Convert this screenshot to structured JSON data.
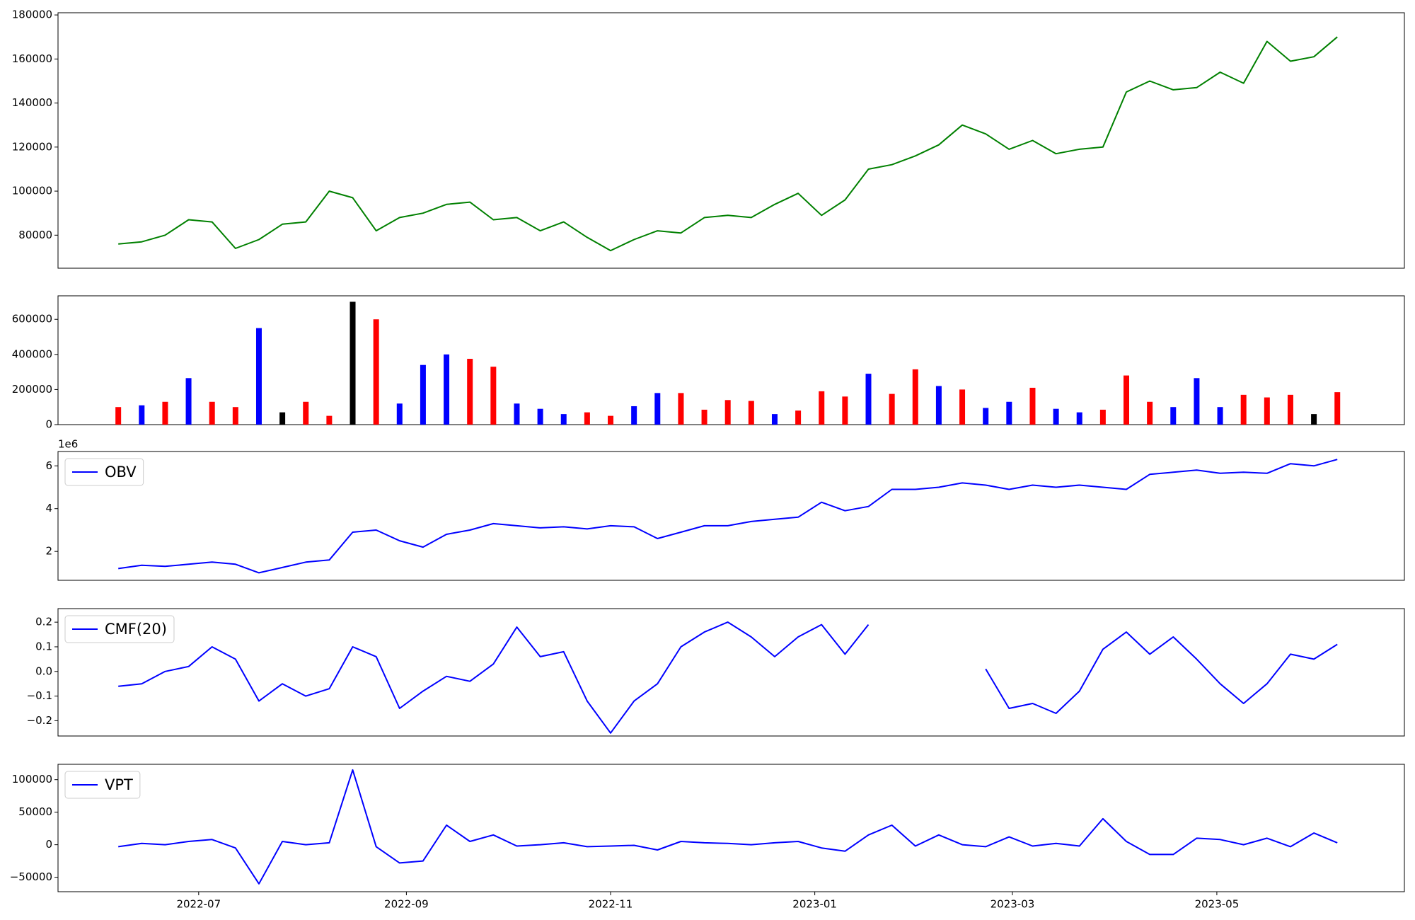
{
  "chart_data": [
    {
      "type": "line",
      "categories": [
        null,
        null,
        null,
        null,
        null,
        null,
        null,
        null,
        null,
        null,
        null,
        null,
        null,
        null,
        null,
        null,
        null,
        null,
        null,
        null,
        null,
        null,
        null,
        null,
        null,
        null,
        null,
        null,
        null,
        null,
        null,
        null,
        null,
        null,
        null,
        null,
        null,
        null,
        null,
        null,
        null,
        null,
        null,
        null,
        null,
        null,
        null,
        null,
        null,
        null,
        null,
        null,
        null
      ],
      "series": [
        {
          "color": "#008000",
          "values": [
            76000,
            77000,
            80000,
            87000,
            86000,
            74000,
            78000,
            85000,
            86000,
            100000,
            97000,
            82000,
            88000,
            90000,
            94000,
            95000,
            87000,
            88000,
            82000,
            86000,
            79000,
            73000,
            78000,
            82000,
            81000,
            88000,
            89000,
            88000,
            94000,
            99000,
            89000,
            96000,
            110000,
            112000,
            116000,
            121000,
            130000,
            126000,
            119000,
            123000,
            117000,
            119000,
            120000,
            145000,
            150000,
            146000,
            147000,
            154000,
            149000,
            168000,
            159000,
            161000,
            170000
          ]
        }
      ],
      "xlim": [
        -2.57,
        54.86
      ],
      "ylim": [
        65000,
        181000
      ],
      "yticks": [
        80000,
        100000,
        120000,
        140000,
        160000,
        180000
      ]
    },
    {
      "type": "bar",
      "categories": [
        null,
        null,
        null,
        null,
        null,
        null,
        null,
        null,
        null,
        null,
        null,
        null,
        null,
        null,
        null,
        null,
        null,
        null,
        null,
        null,
        null,
        null,
        null,
        null,
        null,
        null,
        null,
        null,
        null,
        null,
        null,
        null,
        null,
        null,
        null,
        null,
        null,
        null,
        null,
        null,
        null,
        null,
        null,
        null,
        null,
        null,
        null,
        null,
        null,
        null,
        null,
        null,
        null
      ],
      "values": [
        100000,
        110000,
        130000,
        265000,
        130000,
        100000,
        550000,
        70000,
        130000,
        50000,
        700000,
        600000,
        120000,
        340000,
        400000,
        375000,
        330000,
        120000,
        90000,
        60000,
        70000,
        50000,
        105000,
        180000,
        180000,
        85000,
        140000,
        135000,
        60000,
        80000,
        190000,
        160000,
        290000,
        175000,
        315000,
        220000,
        200000,
        95000,
        130000,
        210000,
        90000,
        70000,
        85000,
        280000,
        130000,
        100000,
        265000,
        100000,
        170000,
        155000,
        170000,
        60000,
        185000
      ],
      "colors": [
        "red",
        "blue",
        "red",
        "blue",
        "red",
        "red",
        "blue",
        "black",
        "red",
        "red",
        "black",
        "red",
        "blue",
        "blue",
        "blue",
        "red",
        "red",
        "blue",
        "blue",
        "blue",
        "red",
        "red",
        "blue",
        "blue",
        "red",
        "red",
        "red",
        "red",
        "blue",
        "red",
        "red",
        "red",
        "blue",
        "red",
        "red",
        "blue",
        "red",
        "blue",
        "blue",
        "red",
        "blue",
        "blue",
        "red",
        "red",
        "red",
        "blue",
        "blue",
        "blue",
        "red",
        "red",
        "red",
        "black",
        "red"
      ],
      "xlim": [
        -2.57,
        54.86
      ],
      "ylim": [
        0,
        734000
      ],
      "yticks": [
        0,
        200000,
        400000,
        600000
      ]
    },
    {
      "type": "line",
      "offset_text": "1e6",
      "legend": "upper left",
      "categories": [
        null,
        null,
        null,
        null,
        null,
        null,
        null,
        null,
        null,
        null,
        null,
        null,
        null,
        null,
        null,
        null,
        null,
        null,
        null,
        null,
        null,
        null,
        null,
        null,
        null,
        null,
        null,
        null,
        null,
        null,
        null,
        null,
        null,
        null,
        null,
        null,
        null,
        null,
        null,
        null,
        null,
        null,
        null,
        null,
        null,
        null,
        null,
        null,
        null,
        null,
        null,
        null,
        null
      ],
      "series": [
        {
          "name": "OBV",
          "color": "#0000ff",
          "values": [
            1.2,
            1.35,
            1.3,
            1.4,
            1.5,
            1.4,
            1.0,
            1.25,
            1.5,
            1.6,
            2.9,
            3.0,
            2.5,
            2.2,
            2.8,
            3.0,
            3.3,
            3.2,
            3.1,
            3.15,
            3.05,
            3.2,
            3.15,
            2.6,
            2.9,
            3.2,
            3.2,
            3.4,
            3.5,
            3.6,
            4.3,
            3.9,
            4.1,
            4.9,
            4.9,
            5.0,
            5.2,
            5.1,
            4.9,
            5.1,
            5.0,
            5.1,
            5.0,
            4.9,
            5.6,
            5.7,
            5.8,
            5.65,
            5.7,
            5.65,
            6.1,
            6.0,
            6.3
          ]
        }
      ],
      "xlim": [
        -2.57,
        54.86
      ],
      "ylim": [
        0.65,
        6.67
      ],
      "yticks": [
        2,
        4,
        6
      ]
    },
    {
      "type": "line",
      "legend": "upper left",
      "categories": [
        null,
        null,
        null,
        null,
        null,
        null,
        null,
        null,
        null,
        null,
        null,
        null,
        null,
        null,
        null,
        null,
        null,
        null,
        null,
        null,
        null,
        null,
        null,
        null,
        null,
        null,
        null,
        null,
        null,
        null,
        null,
        null,
        null,
        null,
        null,
        null,
        null,
        null,
        null,
        null,
        null,
        null,
        null,
        null,
        null,
        null,
        null,
        null,
        null,
        null,
        null,
        null,
        null
      ],
      "series": [
        {
          "name": "CMF(20)",
          "color": "#0000ff",
          "values": [
            -0.06,
            -0.05,
            0.0,
            0.02,
            0.1,
            0.05,
            -0.12,
            -0.05,
            -0.1,
            -0.07,
            0.1,
            0.06,
            -0.15,
            -0.08,
            -0.02,
            -0.04,
            0.03,
            0.18,
            0.06,
            0.08,
            -0.12,
            -0.25,
            -0.12,
            -0.05,
            0.1,
            0.16,
            0.2,
            0.14,
            0.06,
            0.14,
            0.19,
            0.07,
            0.19,
            null,
            null,
            null,
            null,
            0.01,
            -0.15,
            -0.13,
            -0.17,
            -0.08,
            0.09,
            0.16,
            0.07,
            0.14,
            0.05,
            -0.05,
            -0.13,
            -0.05,
            0.07,
            0.05,
            0.11
          ]
        }
      ],
      "xlim": [
        -2.57,
        54.86
      ],
      "ylim": [
        -0.262,
        0.255
      ],
      "yticks": [
        {
          "value": -0.2,
          "label": "−0.2"
        },
        {
          "value": -0.1,
          "label": "−0.1"
        },
        {
          "value": 0,
          "label": "0.0"
        },
        0.1,
        0.2
      ]
    },
    {
      "type": "line",
      "legend": "upper left",
      "categories": [
        null,
        null,
        null,
        null,
        null,
        null,
        null,
        null,
        null,
        null,
        null,
        null,
        null,
        null,
        null,
        null,
        null,
        null,
        null,
        null,
        null,
        null,
        null,
        null,
        null,
        null,
        null,
        null,
        null,
        null,
        null,
        null,
        null,
        null,
        null,
        null,
        null,
        null,
        null,
        null,
        null,
        null,
        null,
        null,
        null,
        null,
        null,
        null,
        null,
        null,
        null,
        null,
        null
      ],
      "series": [
        {
          "name": "VPT",
          "color": "#0000ff",
          "values": [
            -3000,
            2000,
            0,
            5000,
            8000,
            -5000,
            -60000,
            5000,
            0,
            3000,
            115000,
            -3000,
            -28000,
            -25000,
            30000,
            5000,
            15000,
            -2000,
            0,
            3000,
            -3000,
            -2000,
            -1000,
            -8000,
            5000,
            3000,
            2000,
            0,
            3000,
            5000,
            -5000,
            -10000,
            15000,
            30000,
            -2000,
            15000,
            0,
            -3000,
            12000,
            -2000,
            2000,
            -2000,
            40000,
            5000,
            -15000,
            -15000,
            10000,
            8000,
            0,
            10000,
            -3000,
            18000,
            3000
          ]
        }
      ],
      "xlim": [
        -2.57,
        54.86
      ],
      "ylim": [
        -72200,
        123600
      ],
      "yticks": [
        {
          "value": -50000,
          "label": "−50000"
        },
        0,
        50000,
        100000
      ],
      "xticks": [
        {
          "value": 3.43,
          "label": "2022-07"
        },
        {
          "value": 12.29,
          "label": "2022-09"
        },
        {
          "value": 21.0,
          "label": "2022-11"
        },
        {
          "value": 29.71,
          "label": "2023-01"
        },
        {
          "value": 38.14,
          "label": "2023-03"
        },
        {
          "value": 46.86,
          "label": "2023-05"
        }
      ]
    }
  ]
}
